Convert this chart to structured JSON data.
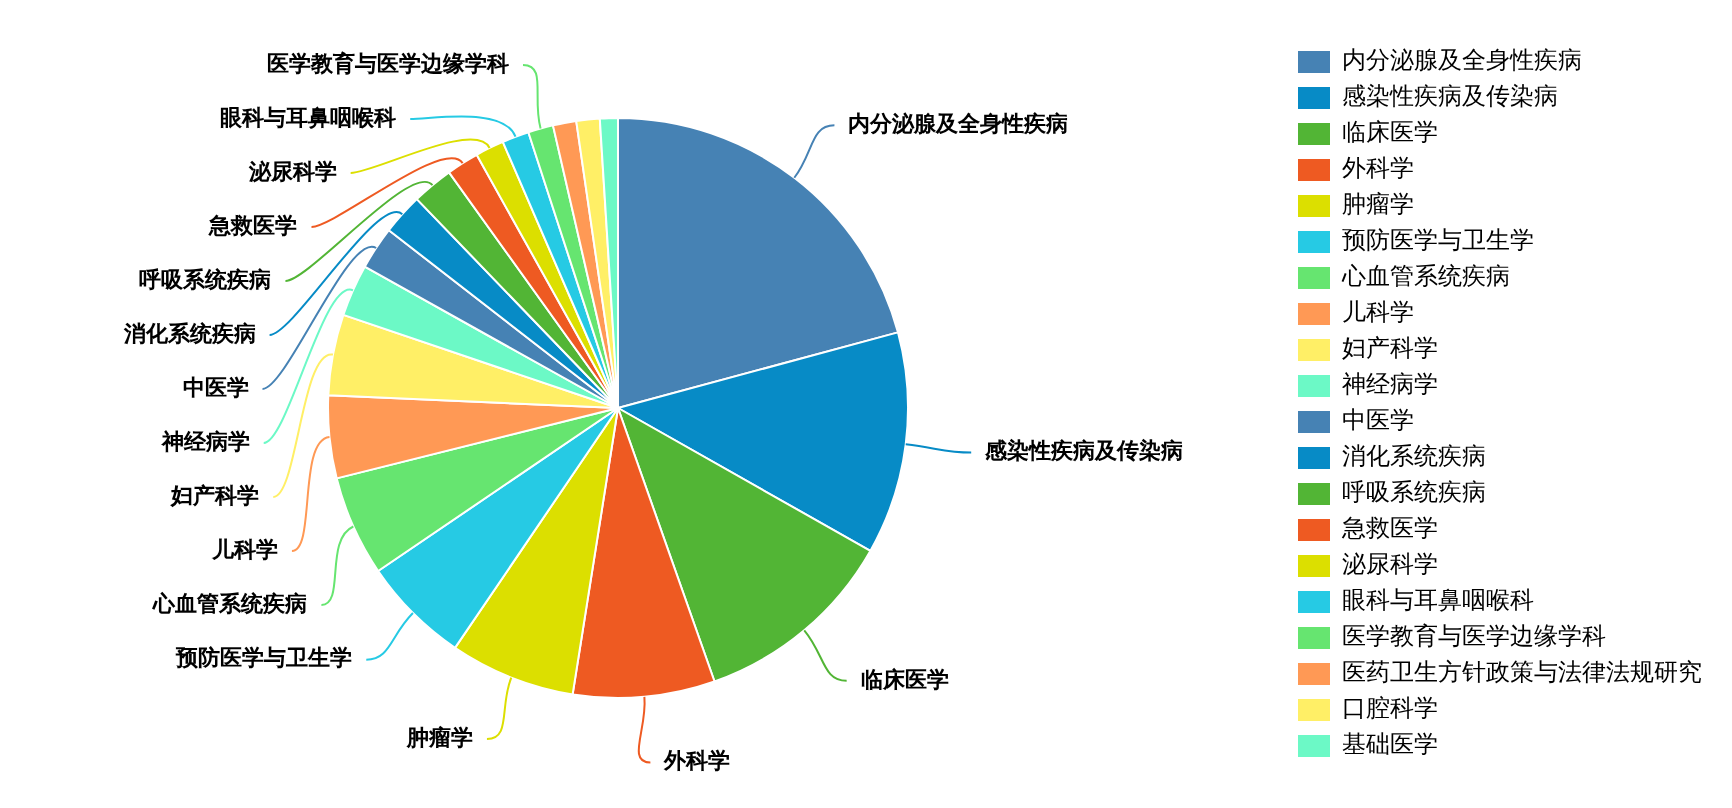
{
  "chart_data": {
    "type": "pie",
    "categories": [
      "内分泌腺及全身性疾病",
      "感染性疾病及传染病",
      "临床医学",
      "外科学",
      "肿瘤学",
      "预防医学与卫生学",
      "心血管系统疾病",
      "儿科学",
      "妇产科学",
      "神经病学",
      "中医学",
      "消化系统疾病",
      "呼吸系统疾病",
      "急救医学",
      "泌尿科学",
      "眼科与耳鼻咽喉科",
      "医学教育与医学边缘学科",
      "医药卫生方针政策与法律法规研究",
      "口腔科学",
      "基础医学"
    ],
    "values": [
      20.8,
      12.4,
      11.4,
      7.9,
      7.0,
      6.0,
      5.6,
      4.6,
      4.5,
      2.9,
      2.4,
      2.3,
      2.3,
      1.8,
      1.6,
      1.5,
      1.4,
      1.3,
      1.3,
      1.0
    ],
    "colors": [
      "#4682b4",
      "#078bc6",
      "#52b535",
      "#ee5a22",
      "#dcdf00",
      "#26cae4",
      "#66e570",
      "#ff9955",
      "#ffef66",
      "#6cf9c6",
      "#4682b4",
      "#078bc6",
      "#52b535",
      "#ee5a22",
      "#dcdf00",
      "#26cae4",
      "#66e570",
      "#ff9955",
      "#ffef66",
      "#6cf9c6"
    ],
    "legend": "right"
  }
}
